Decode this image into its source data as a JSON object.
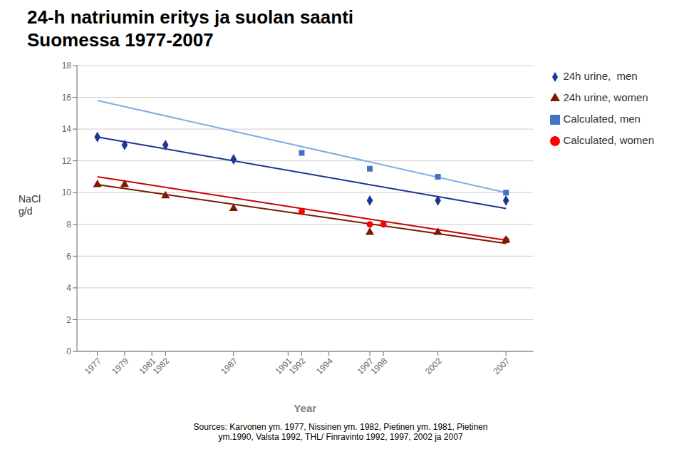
{
  "chart_data": {
    "type": "scatter",
    "title": "24-h natriumin eritys ja suolan saanti",
    "subtitle": "Suomessa 1977-2007",
    "xlabel": "Year",
    "ylabel": "NaCl\ng/d",
    "annotations": [
      "Sources: Karvonen ym. 1977, Nissinen ym. 1982, Pietinen ym. 1981, Pietinen\nym.1990, Valsta 1992, THL/ Finravinto 1992, 1997, 2002 ja 2007"
    ],
    "xlim": [
      1975.5,
      2009
    ],
    "xticks": [
      1977,
      1979,
      1981,
      1982,
      1987,
      1991,
      1992,
      1994,
      1997,
      1998,
      2002,
      2007
    ],
    "ylim": [
      0,
      18
    ],
    "yticks": [
      0,
      2,
      4,
      6,
      8,
      10,
      12,
      14,
      16,
      18
    ],
    "grid": true,
    "legend": "right",
    "series": [
      {
        "type": "line",
        "color": "#7ab0e8",
        "x": [
          1977,
          2007
        ],
        "values": [
          15.8,
          10.0
        ]
      },
      {
        "type": "line",
        "color": "#cc0000",
        "x": [
          1977,
          2007
        ],
        "values": [
          11.0,
          7.0
        ]
      },
      {
        "type": "line",
        "color": "#1f3498",
        "x": [
          1977,
          2007
        ],
        "values": [
          13.5,
          9.0
        ]
      },
      {
        "type": "line",
        "color": "#7b1a00",
        "x": [
          1977,
          2007
        ],
        "values": [
          10.5,
          6.8
        ]
      },
      {
        "type": "scatter",
        "name": "Calculated, men",
        "color": "#4472c4",
        "marker": "square",
        "x": [
          1992,
          1997,
          2002,
          2007
        ],
        "values": [
          12.5,
          11.5,
          11.0,
          10.0
        ]
      },
      {
        "type": "scatter",
        "name": "Calculated, women",
        "color": "#ff0000",
        "marker": "circle",
        "x": [
          1992,
          1997,
          1998,
          2007
        ],
        "values": [
          8.8,
          8.0,
          8.0,
          7.0
        ]
      },
      {
        "type": "scatter",
        "name": "24h urine,  men",
        "color": "#1f3498",
        "marker": "diamond",
        "x": [
          1977,
          1979,
          1982,
          1987,
          1997,
          2002,
          2007
        ],
        "values": [
          13.5,
          13.0,
          13.0,
          12.1,
          9.5,
          9.5,
          9.5
        ]
      },
      {
        "type": "scatter",
        "name": "24h urine, women",
        "color": "#7b1a00",
        "marker": "triangle",
        "x": [
          1977,
          1979,
          1982,
          1987,
          1997,
          2002,
          2007
        ],
        "values": [
          10.5,
          10.5,
          9.8,
          9.0,
          7.5,
          7.5,
          7.0
        ]
      }
    ]
  }
}
